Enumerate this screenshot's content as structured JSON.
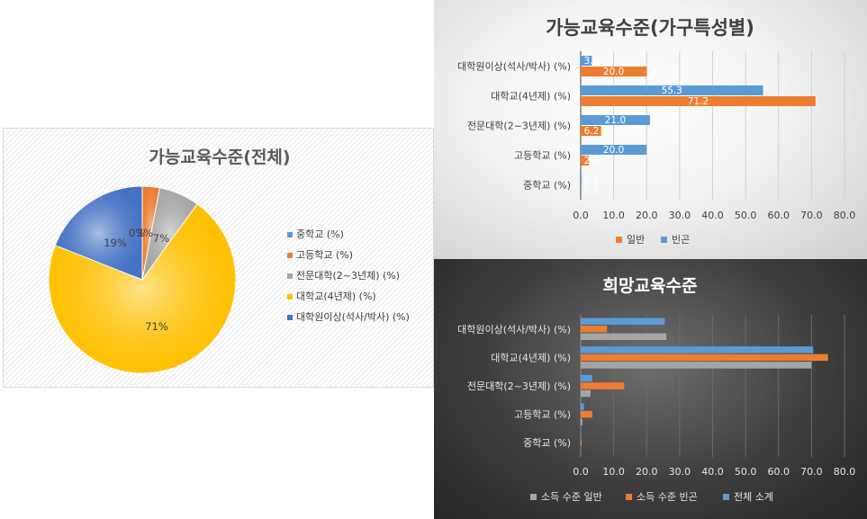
{
  "colors": {
    "middle": "#5b9bd5",
    "high": "#ed7d31",
    "college": "#a5a5a5",
    "univ": "#ffc000",
    "grad": "#4472c4",
    "income_general": "#a5a5a5",
    "income_poor": "#ed7d31",
    "total": "#5b9bd5"
  },
  "chart_data": [
    {
      "type": "pie",
      "title": "가능교육수준(전체)",
      "categories": [
        "중학교 (%)",
        "고등학교 (%)",
        "전문대학(2~3년제) (%)",
        "대학교(4년제) (%)",
        "대학원이상(석사/박사) (%)"
      ],
      "values": [
        0,
        3,
        7,
        71,
        19
      ],
      "data_labels": [
        "0%",
        "3%",
        "7%",
        "71%",
        "19%"
      ],
      "legend": "right"
    },
    {
      "type": "bar",
      "orientation": "horizontal",
      "title": "가능교육수준(가구특성별)",
      "categories": [
        "중학교 (%)",
        "고등학교 (%)",
        "전문대학(2~3년제) (%)",
        "대학교(4년제) (%)",
        "대학원이상(석사/박사) (%)"
      ],
      "series": [
        {
          "name": "일반",
          "values": [
            0.0,
            2.5,
            6.2,
            71.2,
            20.0
          ],
          "labels": [
            "0.0",
            "2.5",
            "6.2",
            "71.2",
            "20.0"
          ]
        },
        {
          "name": "빈곤",
          "values": [
            0.3,
            20.0,
            21.0,
            55.3,
            3.4
          ],
          "labels": [
            "0.3",
            "20.0",
            "21.0",
            "55.3",
            "3.4"
          ]
        }
      ],
      "xlim": [
        0,
        80
      ],
      "ticks": [
        "0.0",
        "10.0",
        "20.0",
        "30.0",
        "40.0",
        "50.0",
        "60.0",
        "70.0",
        "80.0"
      ],
      "grid": true,
      "legend": "bottom"
    },
    {
      "type": "bar",
      "orientation": "horizontal",
      "title": "희망교육수준",
      "categories": [
        "중학교 (%)",
        "고등학교 (%)",
        "전문대학(2~3년제) (%)",
        "대학교(4년제) (%)",
        "대학원이상(석사/박사) (%)"
      ],
      "series": [
        {
          "name": "소득 수준 일반",
          "values": [
            0.0,
            0.5,
            3.0,
            70.0,
            26.0
          ]
        },
        {
          "name": "소득 수준 빈곤",
          "values": [
            0.3,
            3.5,
            13.2,
            75.0,
            8.0
          ]
        },
        {
          "name": "전체 소계",
          "values": [
            0.1,
            1.0,
            3.5,
            70.5,
            25.5
          ]
        }
      ],
      "xlim": [
        0,
        80
      ],
      "ticks": [
        "0.0",
        "10.0",
        "20.0",
        "30.0",
        "40.0",
        "50.0",
        "60.0",
        "70.0",
        "80.0"
      ],
      "grid": true,
      "legend": "bottom"
    }
  ]
}
